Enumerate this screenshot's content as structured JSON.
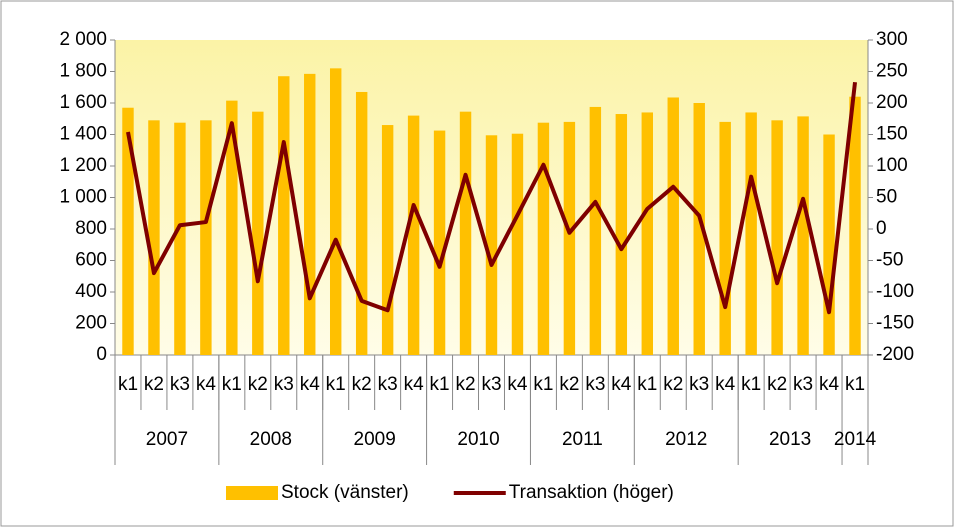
{
  "chart_data": {
    "type": "bar-line",
    "categories": [
      "k1",
      "k2",
      "k3",
      "k4",
      "k1",
      "k2",
      "k3",
      "k4",
      "k1",
      "k2",
      "k3",
      "k4",
      "k1",
      "k2",
      "k3",
      "k4",
      "k1",
      "k2",
      "k3",
      "k4",
      "k1",
      "k2",
      "k3",
      "k4",
      "k1",
      "k2",
      "k3",
      "k4",
      "k1"
    ],
    "years": [
      "2007",
      "2008",
      "2009",
      "2010",
      "2011",
      "2012",
      "2013",
      "2014"
    ],
    "series": [
      {
        "name": "Stock (vänster)",
        "type": "bar",
        "color": "#ffc000",
        "values": [
          1570,
          1490,
          1475,
          1490,
          1615,
          1545,
          1770,
          1785,
          1820,
          1670,
          1460,
          1520,
          1425,
          1545,
          1395,
          1405,
          1475,
          1480,
          1575,
          1530,
          1540,
          1635,
          1600,
          1480,
          1540,
          1490,
          1515,
          1400,
          1640
        ]
      },
      {
        "name": "Transaktion (höger)",
        "type": "line",
        "axis": "y2",
        "color": "#7f0000",
        "values": [
          154,
          -70,
          6,
          11,
          168,
          -83,
          138,
          -110,
          -17,
          -114,
          -129,
          38,
          -60,
          86,
          -57,
          22,
          102,
          -6,
          43,
          -32,
          32,
          67,
          21,
          -124,
          83,
          -86,
          48,
          -132,
          233
        ]
      }
    ],
    "ylim": [
      0,
      2000
    ],
    "yticks": [
      0,
      200,
      400,
      600,
      800,
      {
        "value": 1000,
        "label": "1 000"
      },
      {
        "value": 1200,
        "label": "1 200"
      },
      {
        "value": 1400,
        "label": "1 400"
      },
      {
        "value": 1600,
        "label": "1 600"
      },
      {
        "value": 1800,
        "label": "1 800"
      },
      {
        "value": 2000,
        "label": "2 000"
      }
    ],
    "y2lim": [
      -200,
      300
    ],
    "y2ticks": [
      -200,
      -150,
      -100,
      -50,
      0,
      50,
      100,
      150,
      200,
      250,
      300
    ],
    "legend": "bottom"
  }
}
